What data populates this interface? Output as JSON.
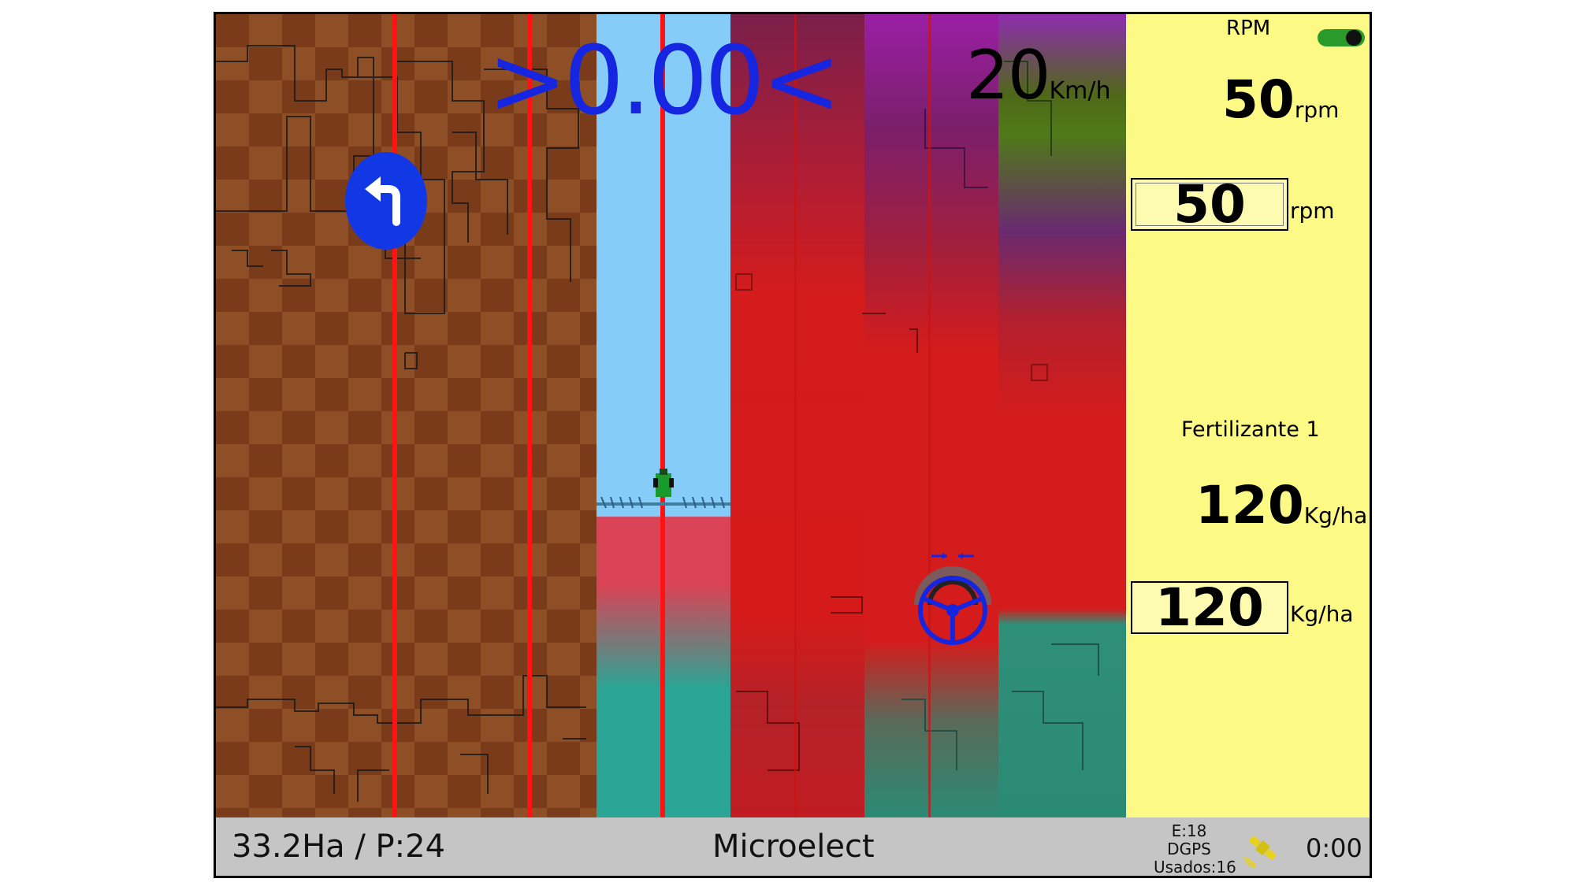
{
  "map": {
    "speed_deviation": ">0.00<",
    "speed_value": "20",
    "speed_unit": "Km/h",
    "turn_icon": "turn-left-icon",
    "steering_icon": "steering-wheel-icon"
  },
  "panel": {
    "rpm_label": "RPM",
    "rpm_actual_value": "50",
    "rpm_actual_unit": "rpm",
    "rpm_target_value": "50",
    "rpm_target_unit": "rpm",
    "fert_label": "Fertilizante 1",
    "fert_actual_value": "120",
    "fert_actual_unit": "Kg/ha",
    "fert_target_value": "120",
    "fert_target_unit": "Kg/ha",
    "toggle_state": "on",
    "panel_color": "#fcf985"
  },
  "status": {
    "area": "33.2Ha / P:24",
    "brand": "Microelect",
    "sat_errors": "E:18",
    "gps_mode": "DGPS",
    "sat_used": "Usados:16",
    "time": "0:00",
    "satellite_icon": "satellite-icon"
  },
  "colors": {
    "guide_line": "#ff1212",
    "speed_text": "#1525e0",
    "status_bar": "#c5c5c5"
  }
}
